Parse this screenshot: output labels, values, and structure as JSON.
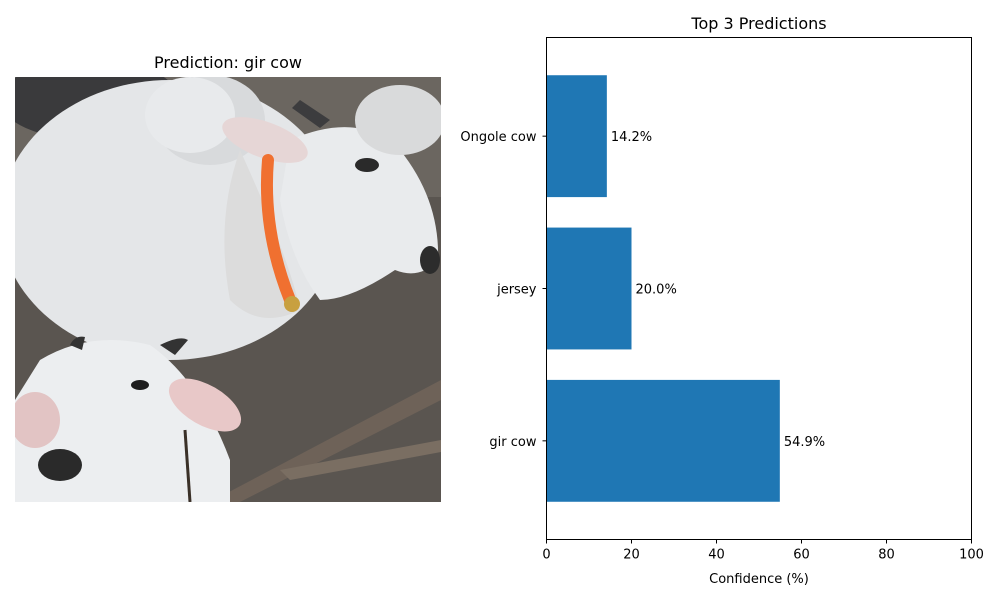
{
  "left_panel": {
    "title": "Prediction: gir cow"
  },
  "chart_data": {
    "type": "bar",
    "orientation": "horizontal",
    "title": "Top 3 Predictions",
    "xlabel": "Confidence (%)",
    "ylabel": "",
    "categories": [
      "gir cow",
      "jersey",
      "Ongole cow"
    ],
    "values": [
      54.9,
      20.0,
      14.2
    ],
    "value_labels": [
      "54.9%",
      "20.0%",
      "14.2%"
    ],
    "xlim": [
      0,
      100
    ],
    "xticks": [
      0,
      20,
      40,
      60,
      80,
      100
    ],
    "bar_color": "#1f77b4",
    "grid": false
  }
}
